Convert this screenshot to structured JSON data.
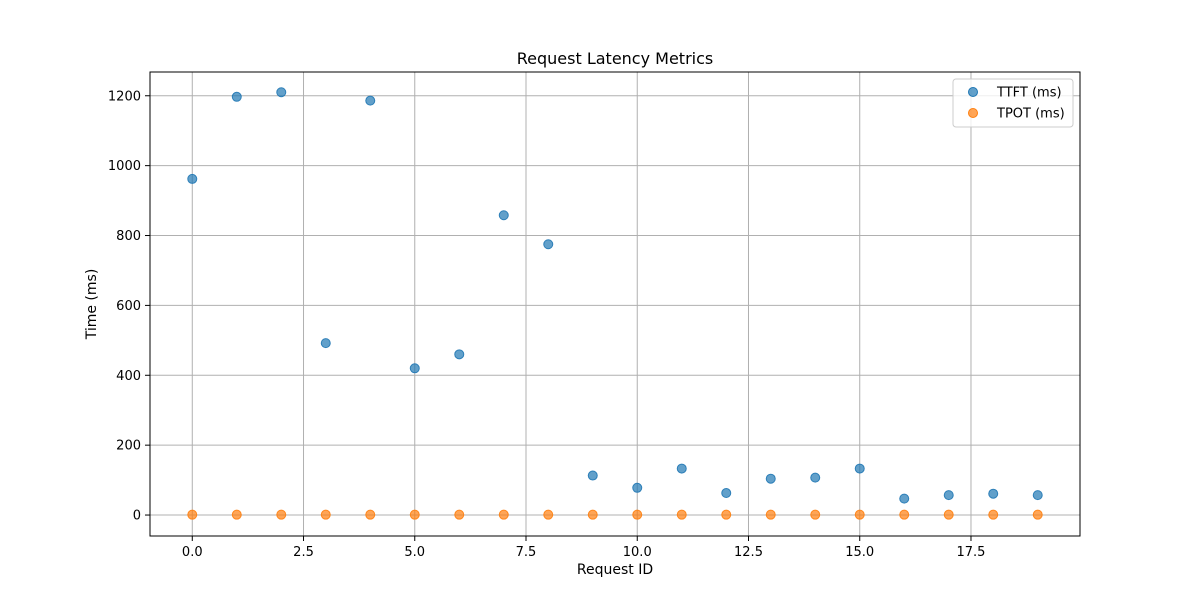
{
  "chart_data": {
    "type": "scatter",
    "title": "Request Latency Metrics",
    "xlabel": "Request ID",
    "ylabel": "Time (ms)",
    "xlim": [
      -0.95,
      19.95
    ],
    "ylim": [
      -60,
      1268
    ],
    "xticks": [
      0.0,
      2.5,
      5.0,
      7.5,
      10.0,
      12.5,
      15.0,
      17.5
    ],
    "xtick_labels": [
      "0.0",
      "2.5",
      "5.0",
      "7.5",
      "10.0",
      "12.5",
      "15.0",
      "17.5"
    ],
    "yticks": [
      0,
      200,
      400,
      600,
      800,
      1000,
      1200
    ],
    "ytick_labels": [
      "0",
      "200",
      "400",
      "600",
      "800",
      "1000",
      "1200"
    ],
    "grid": true,
    "legend_position": "top-right",
    "x": [
      0,
      1,
      2,
      3,
      4,
      5,
      6,
      7,
      8,
      9,
      10,
      11,
      12,
      13,
      14,
      15,
      16,
      17,
      18,
      19
    ],
    "series": [
      {
        "name": "TTFT (ms)",
        "color": "#1f77b4",
        "values": [
          962,
          1197,
          1210,
          492,
          1186,
          420,
          460,
          858,
          775,
          113,
          78,
          133,
          63,
          104,
          107,
          133,
          47,
          57,
          61,
          57
        ]
      },
      {
        "name": "TPOT (ms)",
        "color": "#ff7f0e",
        "values": [
          1,
          1,
          1,
          1,
          1,
          1,
          1,
          1,
          1,
          1,
          1,
          1,
          1,
          1,
          1,
          1,
          1,
          1,
          1,
          1
        ]
      }
    ]
  }
}
